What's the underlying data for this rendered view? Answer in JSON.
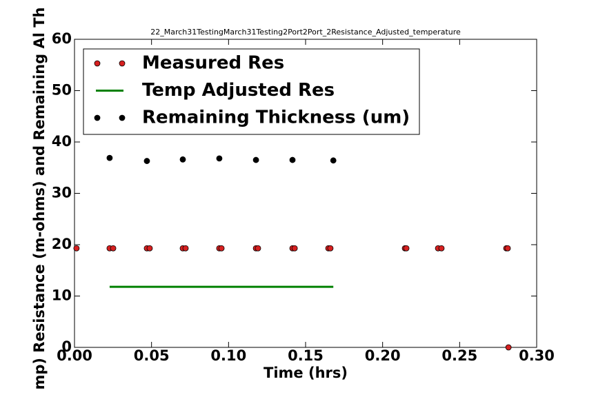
{
  "chart_data": {
    "type": "scatter",
    "title": "22_March31TestingMarch31Testing2Port2Port_2Resistance_Adjusted_temperature",
    "x_label": "Time (hrs)",
    "y_label": "mp) Resistance (m-ohms) and Remaining Al Th",
    "xlim": [
      0,
      0.3
    ],
    "ylim": [
      0,
      60
    ],
    "xticks": [
      {
        "value": 0,
        "label": "0.00"
      },
      {
        "value": 0.05,
        "label": "0.05"
      },
      {
        "value": 0.1,
        "label": "0.10"
      },
      {
        "value": 0.15,
        "label": "0.15"
      },
      {
        "value": 0.2,
        "label": "0.20"
      },
      {
        "value": 0.25,
        "label": "0.25"
      },
      {
        "value": 0.3,
        "label": "0.30"
      }
    ],
    "yticks": [
      0,
      10,
      20,
      30,
      40,
      50,
      60
    ],
    "grid": false,
    "legend": "upper left",
    "series": [
      {
        "name": "Measured Res",
        "color": "#d62020",
        "style": "marker",
        "x": [
          0.0013,
          0.0228,
          0.0251,
          0.047,
          0.0488,
          0.0703,
          0.0721,
          0.094,
          0.0954,
          0.1178,
          0.1191,
          0.1415,
          0.1429,
          0.1648,
          0.1661,
          0.2145,
          0.2154,
          0.236,
          0.2382,
          0.2803,
          0.2812,
          0.2817
        ],
        "values": [
          19.3,
          19.3,
          19.3,
          19.3,
          19.3,
          19.3,
          19.3,
          19.3,
          19.3,
          19.3,
          19.3,
          19.3,
          19.3,
          19.3,
          19.3,
          19.3,
          19.3,
          19.3,
          19.3,
          19.3,
          19.3,
          0
        ]
      },
      {
        "name": "Temp Adjusted Res",
        "color": "#008000",
        "style": "line",
        "x": [
          0.0228,
          0.168
        ],
        "values": [
          11.8,
          11.8
        ]
      },
      {
        "name": "Remaining Thickness (um)",
        "color": "#000000",
        "style": "marker",
        "x": [
          0.0228,
          0.047,
          0.0703,
          0.094,
          0.1178,
          0.1415,
          0.168
        ],
        "values": [
          36.9,
          36.3,
          36.6,
          36.8,
          36.5,
          36.5,
          36.4
        ]
      }
    ]
  }
}
